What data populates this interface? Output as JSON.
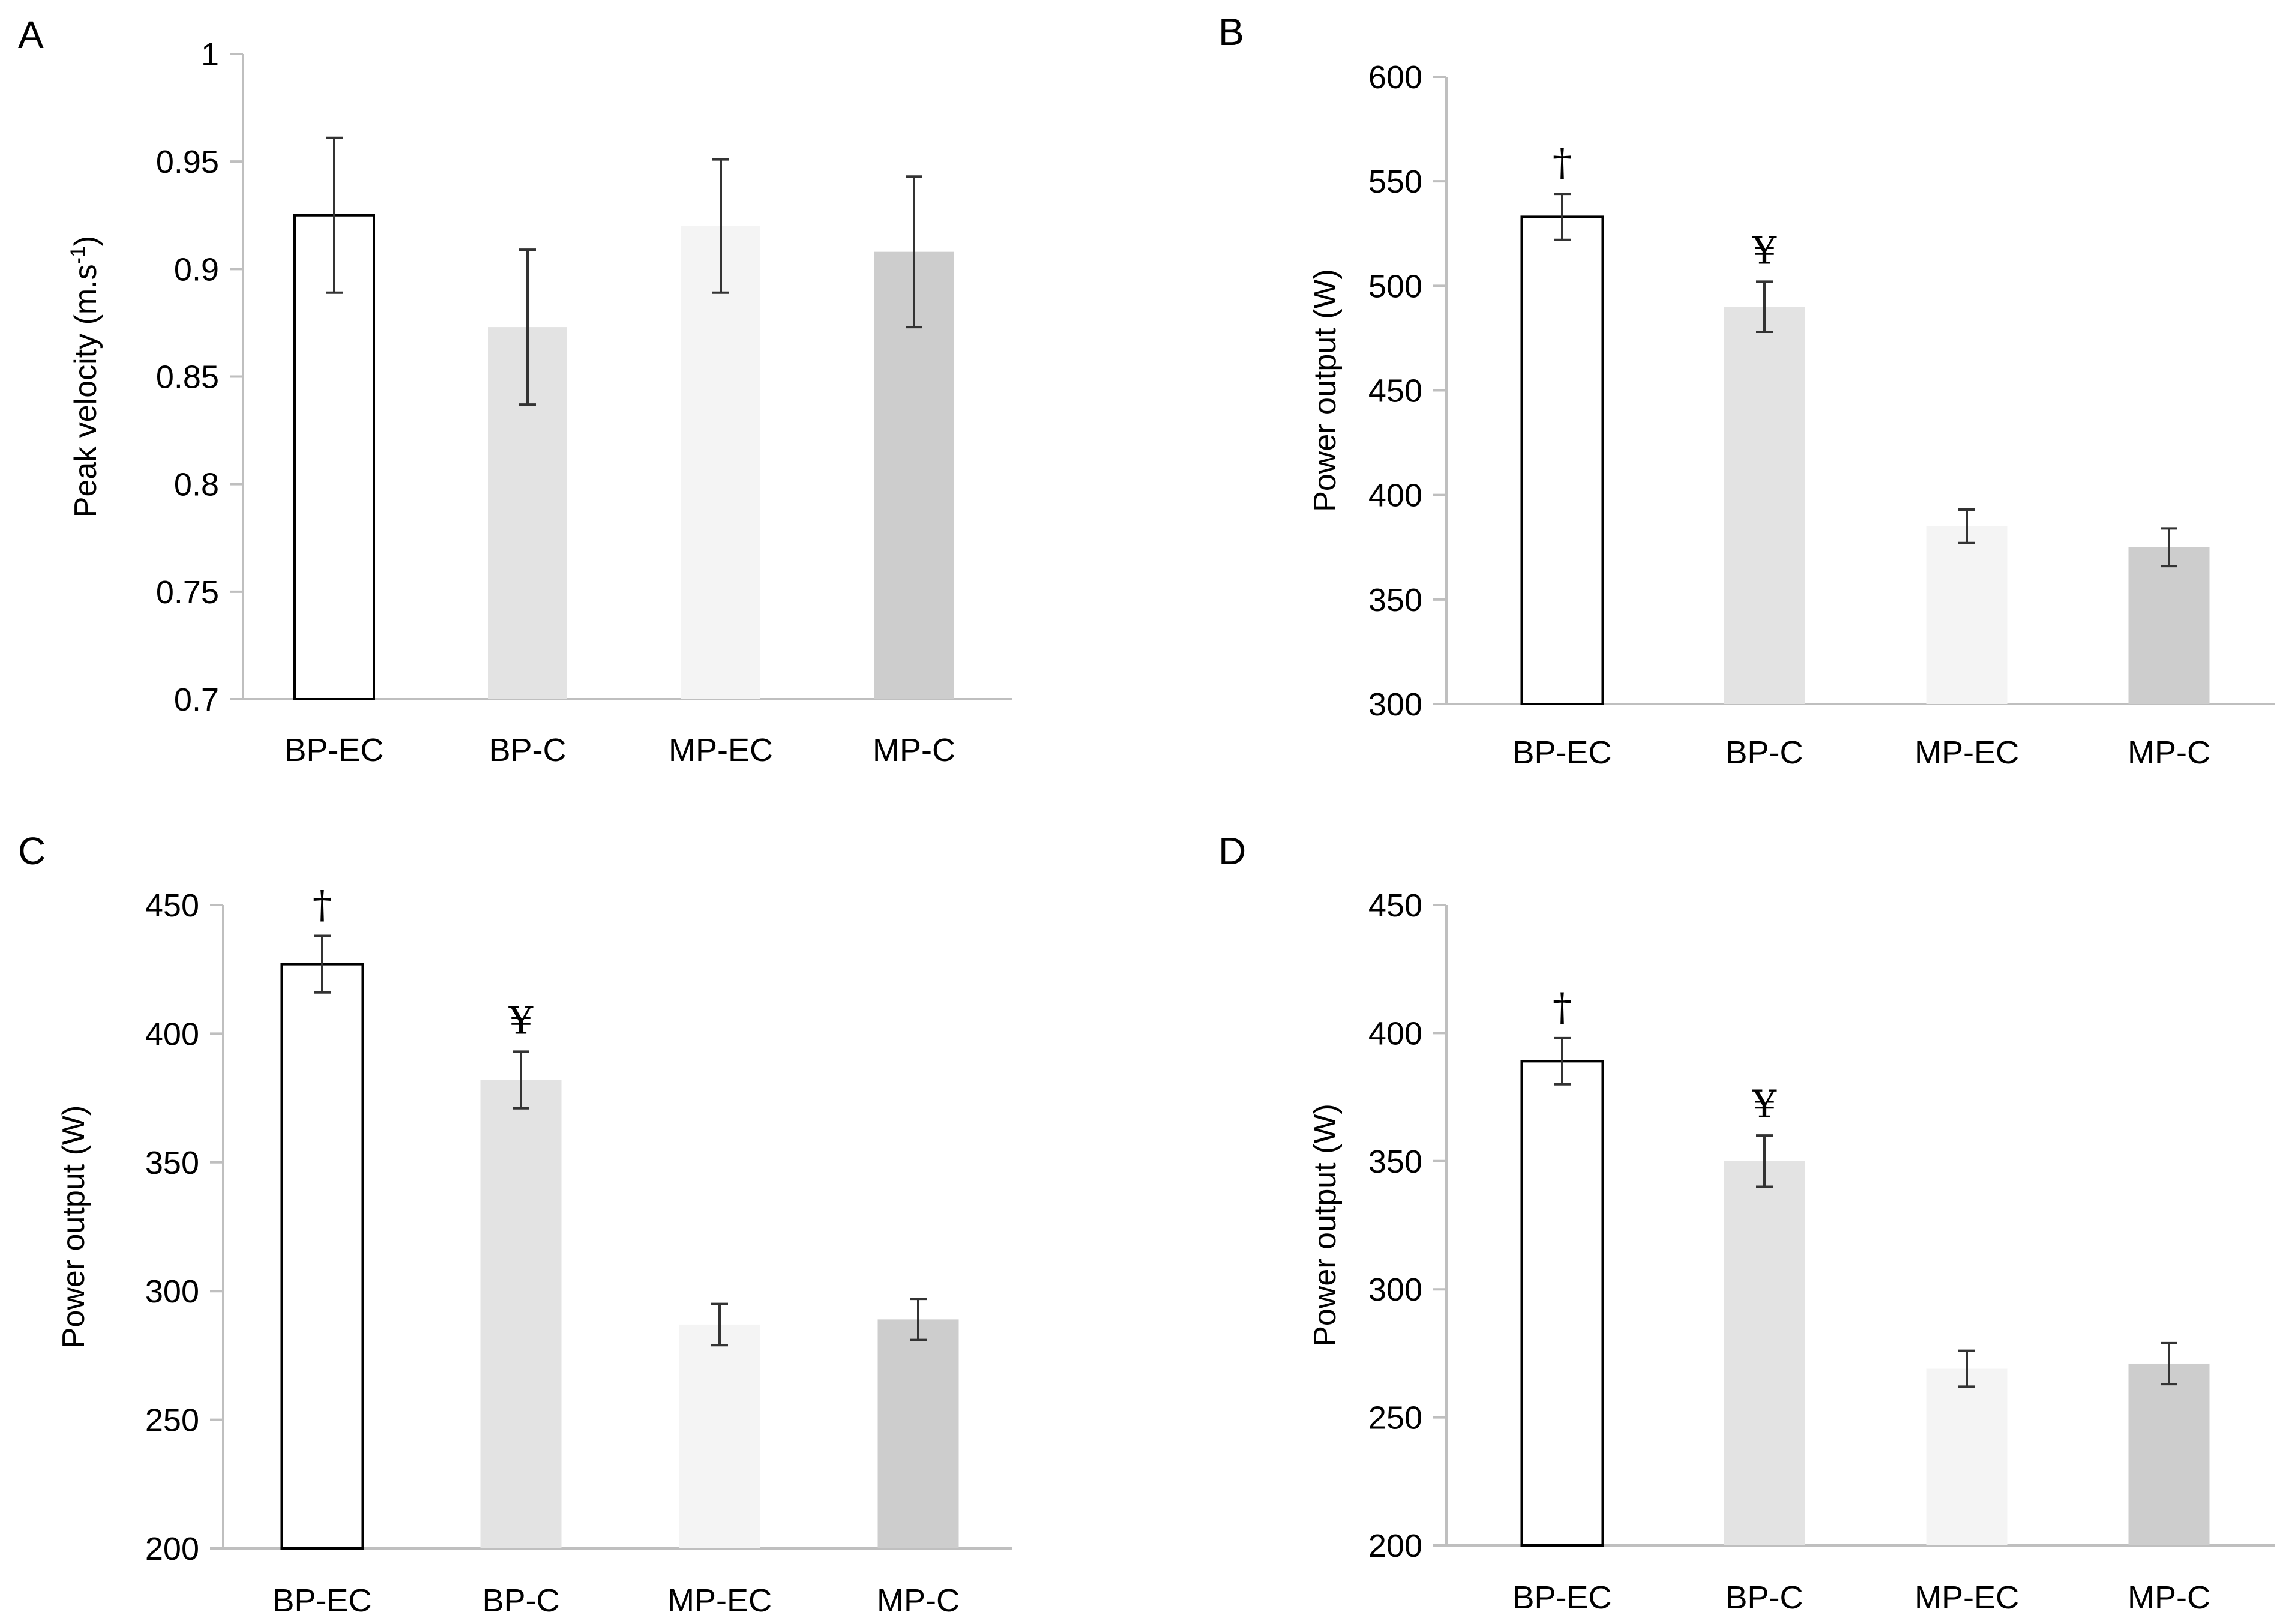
{
  "chart_data": [
    {
      "panel": "A",
      "type": "bar",
      "categories": [
        "BP-EC",
        "BP-C",
        "MP-EC",
        "MP-C"
      ],
      "values": [
        0.925,
        0.873,
        0.92,
        0.908
      ],
      "errors": [
        0.036,
        0.036,
        0.031,
        0.035
      ],
      "significance": [
        "",
        "",
        "",
        ""
      ],
      "ylabel": "Peak velocity (m.s",
      "ylabel_sup": "-1",
      "ylabel_end": ")",
      "ylim": [
        0.7,
        1
      ],
      "yticks": [
        0.7,
        0.75,
        0.8,
        0.85,
        0.9,
        0.95,
        1
      ],
      "ytick_labels": [
        "0.7",
        "0.75",
        "0.8",
        "0.85",
        "0.9",
        "0.95",
        "1"
      ],
      "grid": false
    },
    {
      "panel": "B",
      "type": "bar",
      "categories": [
        "BP-EC",
        "BP-C",
        "MP-EC",
        "MP-C"
      ],
      "values": [
        533,
        490,
        385,
        375
      ],
      "errors": [
        11,
        12,
        8,
        9
      ],
      "significance": [
        "†",
        "¥",
        "",
        ""
      ],
      "ylabel": "Power output (W)",
      "ylabel_sup": "",
      "ylabel_end": "",
      "ylim": [
        300,
        600
      ],
      "yticks": [
        300,
        350,
        400,
        450,
        500,
        550,
        600
      ],
      "ytick_labels": [
        "300",
        "350",
        "400",
        "450",
        "500",
        "550",
        "600"
      ],
      "grid": false
    },
    {
      "panel": "C",
      "type": "bar",
      "categories": [
        "BP-EC",
        "BP-C",
        "MP-EC",
        "MP-C"
      ],
      "values": [
        427,
        382,
        287,
        289
      ],
      "errors": [
        11,
        11,
        8,
        8
      ],
      "significance": [
        "†",
        "¥",
        "",
        ""
      ],
      "ylabel": "Power output (W)",
      "ylabel_sup": "",
      "ylabel_end": "",
      "ylim": [
        200,
        450
      ],
      "yticks": [
        200,
        250,
        300,
        350,
        400,
        450
      ],
      "ytick_labels": [
        "200",
        "250",
        "300",
        "350",
        "400",
        "450"
      ],
      "grid": false
    },
    {
      "panel": "D",
      "type": "bar",
      "categories": [
        "BP-EC",
        "BP-C",
        "MP-EC",
        "MP-C"
      ],
      "values": [
        389,
        350,
        269,
        271
      ],
      "errors": [
        9,
        10,
        7,
        8
      ],
      "significance": [
        "†",
        "¥",
        "",
        ""
      ],
      "ylabel": "Power output (W)",
      "ylabel_sup": "",
      "ylabel_end": "",
      "ylim": [
        200,
        450
      ],
      "yticks": [
        200,
        250,
        300,
        350,
        400,
        450
      ],
      "ytick_labels": [
        "200",
        "250",
        "300",
        "350",
        "400",
        "450"
      ],
      "grid": false
    }
  ],
  "colors": {
    "BP-EC": "#ffffff",
    "BP-C": "#e3e3e3",
    "MP-EC": "#f4f4f4",
    "MP-C": "#cdcdcd",
    "outline": "#000000",
    "axis": "#bfbfbf",
    "errorbar": "#333333"
  }
}
